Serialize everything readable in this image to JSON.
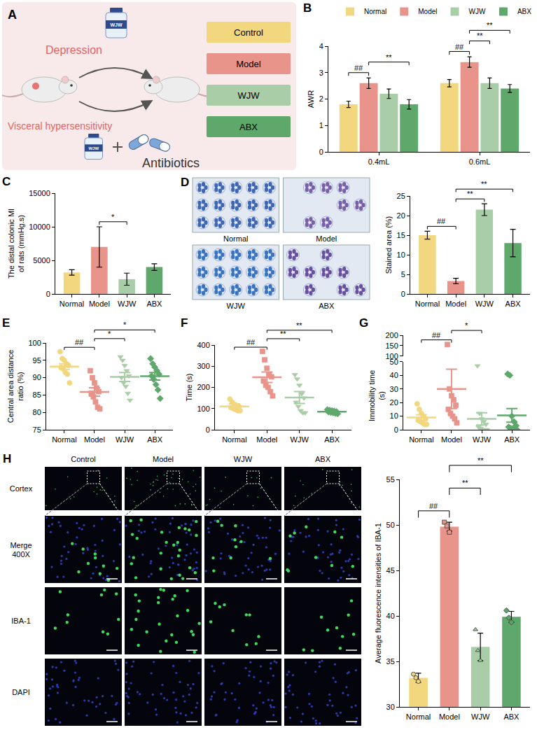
{
  "diagram": {
    "panel": "A",
    "labels": {
      "depression": "Depression",
      "visceral": "Visceral hypersensitivity",
      "bottle": "WJW",
      "antibiotics": "Antibiotics"
    },
    "groups": [
      {
        "name": "Control",
        "color": "#F3D77E"
      },
      {
        "name": "Model",
        "color": "#E8948A"
      },
      {
        "name": "WJW",
        "color": "#A9CDA6"
      },
      {
        "name": "ABX",
        "color": "#5DA86A"
      }
    ]
  },
  "micrographs": [
    {
      "panel": "D",
      "labels": [
        "Normal",
        "Model",
        "WJW",
        "ABX"
      ]
    },
    {
      "panel": "H",
      "columns": [
        "Control",
        "Model",
        "WJW",
        "ABX"
      ],
      "rows": [
        "Cortex",
        "Merge 400X",
        "IBA-1",
        "DAPI"
      ]
    }
  ],
  "chart_data": [
    {
      "panel": "B",
      "type": "bar",
      "categories": [
        "0.4mL",
        "0.6mL"
      ],
      "series": [
        {
          "name": "Normal",
          "color": "#F3D77E",
          "values": [
            1.8,
            2.6
          ],
          "errors": [
            0.12,
            0.14
          ]
        },
        {
          "name": "Model",
          "color": "#E8948A",
          "values": [
            2.6,
            3.4
          ],
          "errors": [
            0.2,
            0.2
          ]
        },
        {
          "name": "WJW",
          "color": "#A9CDA6",
          "values": [
            2.2,
            2.6
          ],
          "errors": [
            0.18,
            0.2
          ]
        },
        {
          "name": "ABX",
          "color": "#5DA86A",
          "values": [
            1.8,
            2.4
          ],
          "errors": [
            0.18,
            0.15
          ]
        }
      ],
      "ylabel": "AWR",
      "ylim": [
        0,
        4
      ],
      "yticks": [
        0,
        1,
        2,
        3,
        4
      ],
      "grid": false,
      "legend": "top",
      "comparisons": [
        {
          "category": "0.4mL",
          "groups": [
            "Normal",
            "Model"
          ],
          "label": "##"
        },
        {
          "category": "0.4mL",
          "groups": [
            "Model",
            "ABX"
          ],
          "label": "**"
        },
        {
          "category": "0.6mL",
          "groups": [
            "Normal",
            "Model"
          ],
          "label": "##"
        },
        {
          "category": "0.6mL",
          "groups": [
            "Model",
            "WJW"
          ],
          "label": "**"
        },
        {
          "category": "0.6mL",
          "groups": [
            "Model",
            "ABX"
          ],
          "label": "**"
        }
      ]
    },
    {
      "panel": "C",
      "type": "bar",
      "series": [
        {
          "name": "Normal",
          "color": "#F3D77E",
          "mean": 3200,
          "error": 400
        },
        {
          "name": "Model",
          "color": "#E8948A",
          "mean": 7000,
          "error": 3000
        },
        {
          "name": "WJW",
          "color": "#A9CDA6",
          "mean": 2200,
          "error": 900
        },
        {
          "name": "ABX",
          "color": "#5DA86A",
          "mean": 4000,
          "error": 500
        }
      ],
      "ylabel": "The distal colonic MI of rats (mmHg.s)",
      "ylim": [
        0,
        15000
      ],
      "yticks": [
        0,
        5000,
        10000,
        15000
      ],
      "grid": false,
      "comparisons": [
        {
          "groups": [
            "Model",
            "WJW"
          ],
          "label": "*"
        }
      ]
    },
    {
      "type": "bar",
      "series": [
        {
          "name": "Normal",
          "color": "#F3D77E",
          "mean": 15,
          "error": 1
        },
        {
          "name": "Model",
          "color": "#E8948A",
          "mean": 3.3,
          "error": 0.7
        },
        {
          "name": "WJW",
          "color": "#A9CDA6",
          "mean": 21.5,
          "error": 1.5
        },
        {
          "name": "ABX",
          "color": "#5DA86A",
          "mean": 13,
          "error": 3.5
        }
      ],
      "ylabel": "Stained area (%)",
      "ylim": [
        0,
        25
      ],
      "yticks": [
        0,
        5,
        10,
        15,
        20,
        25
      ],
      "grid": false,
      "comparisons": [
        {
          "groups": [
            "Normal",
            "Model"
          ],
          "label": "##"
        },
        {
          "groups": [
            "Model",
            "WJW"
          ],
          "label": "**"
        },
        {
          "groups": [
            "Model",
            "ABX"
          ],
          "label": "**"
        }
      ]
    },
    {
      "panel": "E",
      "type": "strip",
      "series": [
        {
          "name": "Normal",
          "color": "#F3D77E",
          "marker": "circle",
          "mean": 93.2,
          "error": 0.8,
          "points": [
            97.5,
            95.5,
            95,
            94,
            93.5,
            93,
            92.5,
            91.5,
            91,
            88.5
          ]
        },
        {
          "name": "Model",
          "color": "#E8948A",
          "marker": "square",
          "mean": 85.9,
          "error": 1.2,
          "points": [
            92,
            90,
            88.5,
            87,
            86,
            85.5,
            84.5,
            83,
            81.5,
            81
          ]
        },
        {
          "name": "WJW",
          "color": "#A9CDA6",
          "marker": "triangle-down",
          "mean": 90.2,
          "error": 1.3,
          "points": [
            96,
            95,
            93.5,
            92,
            90.5,
            90,
            88.5,
            87.5,
            85.5,
            83.5
          ]
        },
        {
          "name": "ABX",
          "color": "#5DA86A",
          "marker": "diamond",
          "mean": 90.4,
          "error": 1.1,
          "points": [
            95.5,
            94,
            93,
            92,
            91,
            90.5,
            89.5,
            88,
            86.5,
            84
          ]
        }
      ],
      "ylabel": "Central area distance ratio (%)",
      "ylim": [
        75,
        100
      ],
      "yticks": [
        75,
        80,
        85,
        90,
        95,
        100
      ],
      "grid": false,
      "comparisons": [
        {
          "groups": [
            "Normal",
            "Model"
          ],
          "label": "##"
        },
        {
          "groups": [
            "Model",
            "WJW"
          ],
          "label": "*"
        },
        {
          "groups": [
            "Model",
            "ABX"
          ],
          "label": "*"
        }
      ]
    },
    {
      "panel": "F",
      "type": "strip",
      "series": [
        {
          "name": "Normal",
          "color": "#F3D77E",
          "marker": "circle",
          "mean": 110,
          "error": 12,
          "points": [
            145,
            130,
            120,
            115,
            110,
            105,
            100,
            95,
            90,
            90
          ]
        },
        {
          "name": "Model",
          "color": "#E8948A",
          "marker": "square",
          "mean": 248,
          "error": 25,
          "points": [
            370,
            330,
            290,
            260,
            250,
            230,
            210,
            200,
            180,
            160
          ]
        },
        {
          "name": "WJW",
          "color": "#A9CDA6",
          "marker": "triangle-down",
          "mean": 152,
          "error": 28,
          "points": [
            260,
            240,
            210,
            170,
            150,
            130,
            110,
            90,
            80,
            80
          ]
        },
        {
          "name": "ABX",
          "color": "#5DA86A",
          "marker": "diamond",
          "mean": 85,
          "error": 5,
          "points": [
            95,
            92,
            90,
            88,
            86,
            84,
            82,
            80,
            78,
            75
          ]
        }
      ],
      "ylabel": "Time (s)",
      "ylim": [
        0,
        400
      ],
      "yticks": [
        0,
        100,
        200,
        300,
        400
      ],
      "grid": false,
      "comparisons": [
        {
          "groups": [
            "Normal",
            "Model"
          ],
          "label": "##"
        },
        {
          "groups": [
            "Model",
            "WJW"
          ],
          "label": "**"
        },
        {
          "groups": [
            "Model",
            "ABX"
          ],
          "label": "**"
        }
      ]
    },
    {
      "panel": "G",
      "type": "strip",
      "series": [
        {
          "name": "Normal",
          "color": "#F3D77E",
          "marker": "circle",
          "mean": 9,
          "error": 2,
          "points": [
            19,
            15,
            12,
            10,
            8,
            7,
            6,
            5,
            4,
            4
          ]
        },
        {
          "name": "Model",
          "color": "#E8948A",
          "marker": "square",
          "mean": 30,
          "error": 14.5,
          "points": [
            155,
            30,
            25,
            22,
            18,
            15,
            12,
            10,
            8,
            5
          ]
        },
        {
          "name": "WJW",
          "color": "#A9CDA6",
          "marker": "triangle-down",
          "mean": 8,
          "error": 4.5,
          "points": [
            47,
            12,
            8,
            6,
            4,
            2,
            1,
            0,
            0,
            0
          ]
        },
        {
          "name": "ABX",
          "color": "#5DA86A",
          "marker": "diamond",
          "mean": 10.5,
          "error": 5,
          "points": [
            41,
            40,
            10,
            6,
            3,
            2,
            1,
            1,
            1,
            0
          ]
        }
      ],
      "ylabel": "Immobility time (s)",
      "ylim": [
        0,
        200
      ],
      "axis_break": [
        50,
        100
      ],
      "yticks": [
        0,
        10,
        20,
        30,
        40,
        50,
        100,
        150,
        200
      ],
      "grid": false,
      "comparisons": [
        {
          "groups": [
            "Normal",
            "Model"
          ],
          "label": "##"
        },
        {
          "groups": [
            "Model",
            "WJW"
          ],
          "label": "*"
        }
      ]
    },
    {
      "type": "bar",
      "series": [
        {
          "name": "Normal",
          "color": "#F3D77E",
          "marker": "circle",
          "mean": 33.2,
          "error": 0.5,
          "points": [
            33.6,
            33.2,
            32.8
          ]
        },
        {
          "name": "Model",
          "color": "#E8948A",
          "marker": "square",
          "mean": 49.8,
          "error": 0.5,
          "points": [
            50.3,
            49.9,
            49.2
          ]
        },
        {
          "name": "WJW",
          "color": "#A9CDA6",
          "marker": "triangle-up",
          "mean": 36.6,
          "error": 1.5,
          "points": [
            38.5,
            36.2,
            35.1
          ]
        },
        {
          "name": "ABX",
          "color": "#5DA86A",
          "marker": "diamond",
          "mean": 39.9,
          "error": 0.6,
          "points": [
            40.6,
            39.8,
            39.3
          ]
        }
      ],
      "ylabel": "Average fluorescence intensities of IBA-1",
      "ylim": [
        30,
        55
      ],
      "yticks": [
        30,
        35,
        40,
        45,
        50,
        55
      ],
      "grid": false,
      "comparisons": [
        {
          "groups": [
            "Normal",
            "Model"
          ],
          "label": "##"
        },
        {
          "groups": [
            "Model",
            "WJW"
          ],
          "label": "**"
        },
        {
          "groups": [
            "Model",
            "ABX"
          ],
          "label": "**"
        }
      ]
    }
  ]
}
